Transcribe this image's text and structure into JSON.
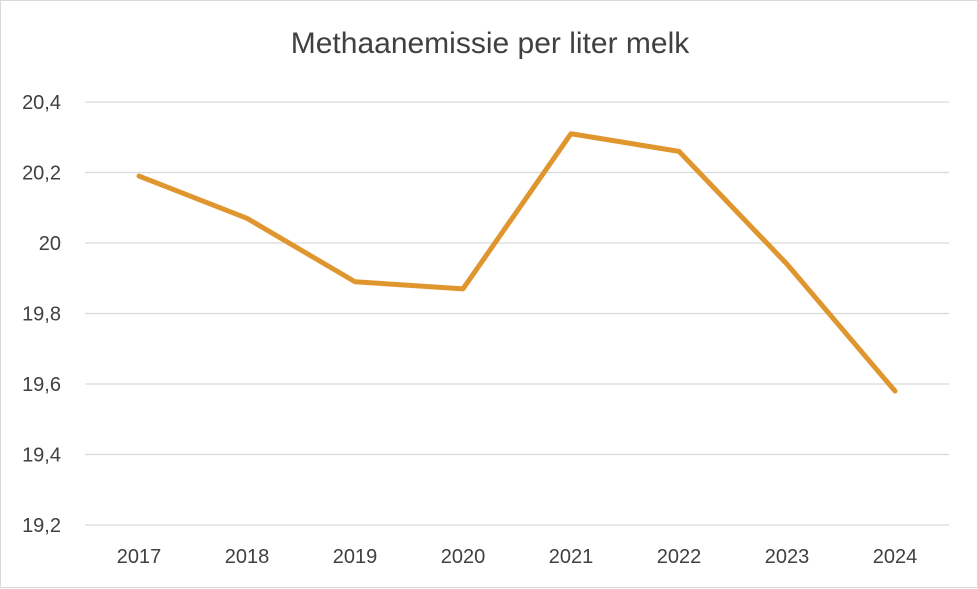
{
  "chart_data": {
    "type": "line",
    "title": "Methaanemissie per liter melk",
    "xlabel": "",
    "ylabel": "",
    "categories": [
      "2017",
      "2018",
      "2019",
      "2020",
      "2021",
      "2022",
      "2023",
      "2024"
    ],
    "series": [
      {
        "name": "Methaanemissie per liter melk",
        "values": [
          20.19,
          20.07,
          19.89,
          19.87,
          20.31,
          20.26,
          19.94,
          19.58
        ]
      }
    ],
    "ylim": [
      19.2,
      20.4
    ],
    "yticks": [
      "19,2",
      "19,4",
      "19,6",
      "19,8",
      "20",
      "20,2",
      "20,4"
    ],
    "ytick_values": [
      19.2,
      19.4,
      19.6,
      19.8,
      20.0,
      20.2,
      20.4
    ],
    "grid": true,
    "line_color": "#e0962e"
  }
}
